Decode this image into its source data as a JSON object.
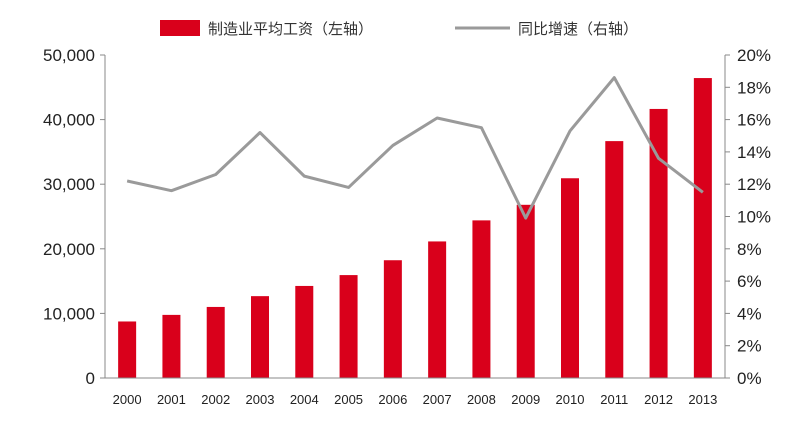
{
  "chart_data": {
    "type": "bar",
    "categories": [
      "2000",
      "2001",
      "2002",
      "2003",
      "2004",
      "2005",
      "2006",
      "2007",
      "2008",
      "2009",
      "2010",
      "2011",
      "2012",
      "2013"
    ],
    "series": [
      {
        "name": "制造业平均工资（左轴）",
        "type": "bar",
        "axis": "left",
        "color": "#d9001b",
        "values": [
          8750,
          9770,
          11000,
          12670,
          14250,
          15930,
          18230,
          21140,
          24400,
          26810,
          30920,
          36670,
          41650,
          46430
        ]
      },
      {
        "name": "同比增速（右轴）",
        "type": "line",
        "axis": "right",
        "color": "#9a9a9a",
        "values": [
          12.2,
          11.6,
          12.6,
          15.2,
          12.5,
          11.8,
          14.4,
          16.1,
          15.5,
          9.9,
          15.3,
          18.6,
          13.6,
          11.5
        ]
      }
    ],
    "left_axis": {
      "ylim": [
        0,
        50000
      ],
      "ticks": [
        0,
        10000,
        20000,
        30000,
        40000,
        50000
      ],
      "tick_labels": [
        "0",
        "10,000",
        "20,000",
        "30,000",
        "40,000",
        "50,000"
      ]
    },
    "right_axis": {
      "ylim": [
        0,
        20
      ],
      "ticks": [
        0,
        2,
        4,
        6,
        8,
        10,
        12,
        14,
        16,
        18,
        20
      ],
      "tick_labels": [
        "0%",
        "2%",
        "4%",
        "6%",
        "8%",
        "10%",
        "12%",
        "14%",
        "16%",
        "18%",
        "20%"
      ]
    },
    "grid": false,
    "legend_position": "top"
  }
}
